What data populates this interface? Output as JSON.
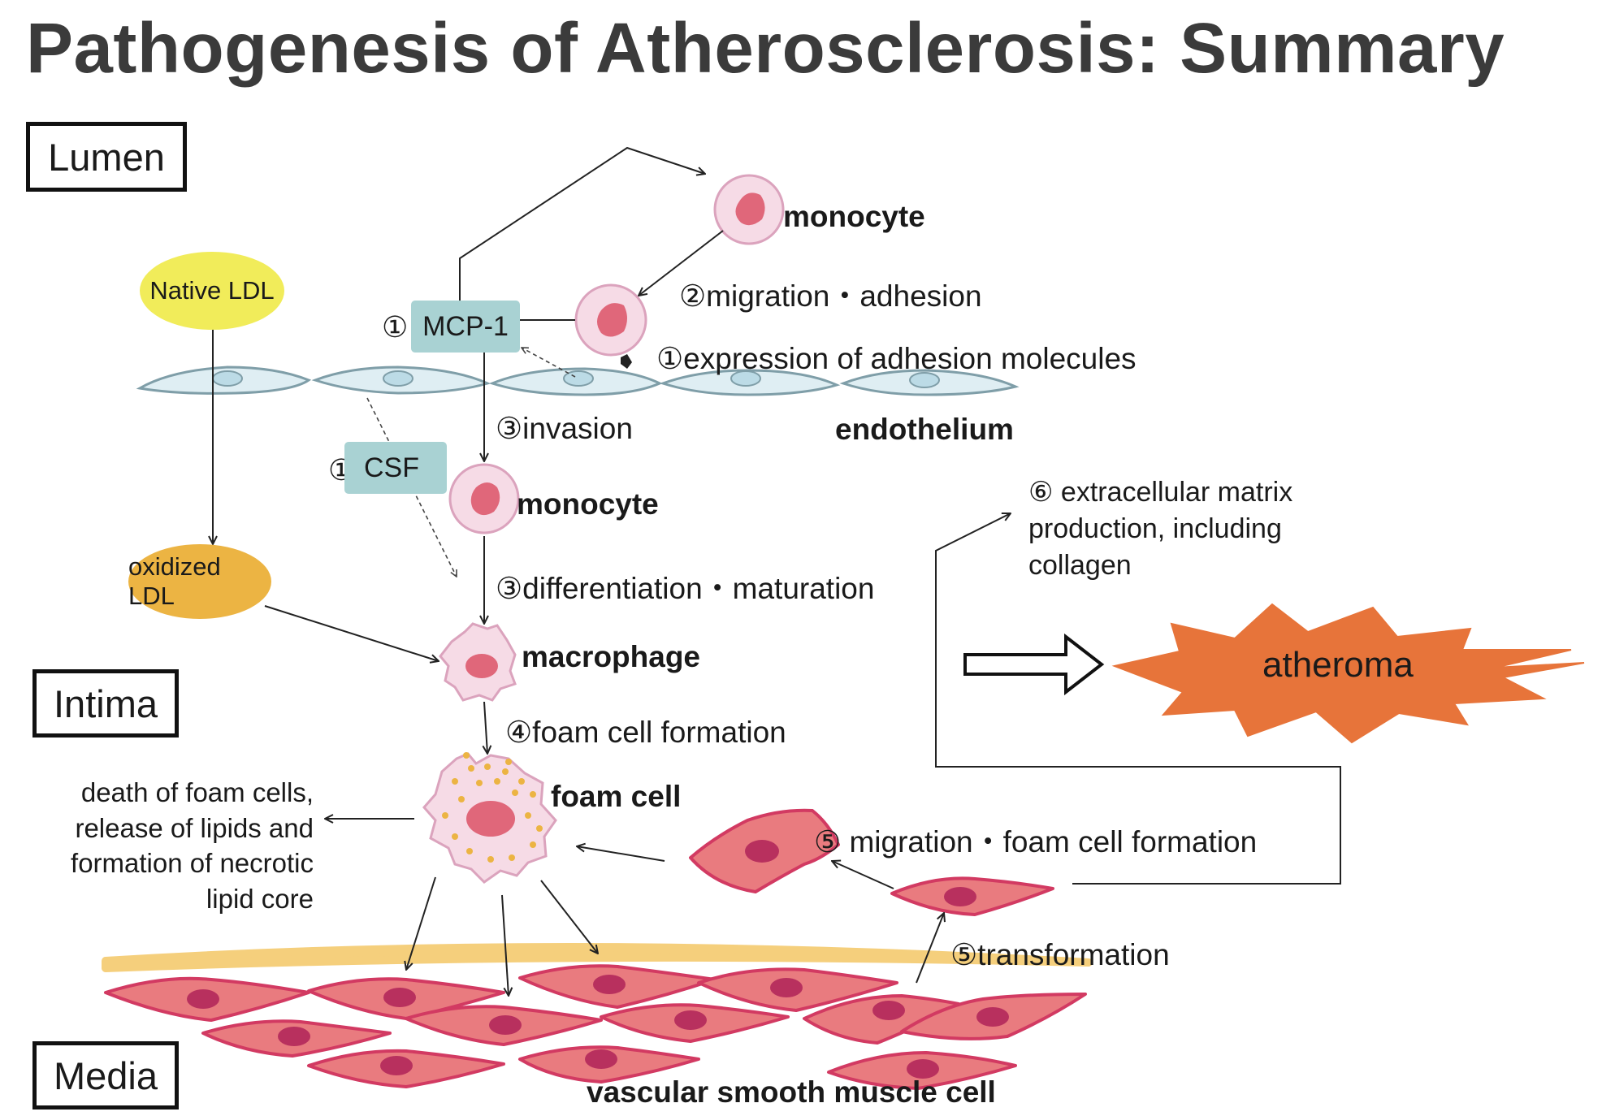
{
  "title": "Pathogenesis of Atherosclerosis: Summary",
  "layers": {
    "lumen": "Lumen",
    "intima": "Intima",
    "media": "Media"
  },
  "ldl": {
    "native": "Native LDL",
    "oxidized": "oxidized LDL"
  },
  "factors": {
    "mcp1_num": "①",
    "mcp1": "MCP-1",
    "csf_num": "①",
    "csf": "CSF"
  },
  "cells": {
    "monocyte_lumen": "monocyte",
    "monocyte_intima": "monocyte",
    "macrophage": "macrophage",
    "foam_cell": "foam cell",
    "endothelium": "endothelium",
    "vsmc": "vascular smooth muscle cell",
    "atheroma": "atheroma"
  },
  "steps": {
    "migration_adhesion": "②migration・adhesion",
    "adhesion_molecules": "①expression of adhesion molecules",
    "invasion": "③invasion",
    "differentiation": "③differentiation・maturation",
    "foam_formation": "④foam cell formation",
    "smc_migration": "⑤ migration・foam cell formation",
    "transformation": "⑤transformation",
    "ecm_line1": "⑥ extracellular matrix",
    "ecm_line2": "production, including",
    "ecm_line3": "collagen"
  },
  "death_text": {
    "line1": "death of foam cells,",
    "line2": "release of lipids and",
    "line3": "formation of necrotic",
    "line4": "lipid core"
  },
  "colors": {
    "title": "#3b3b3b",
    "native_ldl": "#f1ec5a",
    "oxidized_ldl": "#ecb443",
    "factor_box": "#a9d2d3",
    "endothelium": "#dfeef3",
    "endothelium_stroke": "#7f9ea8",
    "cell_fill": "#f6dbe6",
    "cell_stroke": "#dba3bd",
    "nucleus": "#e0677a",
    "smc_fill": "#e97b7f",
    "smc_stroke": "#d23a62",
    "smc_nucleus": "#b8305e",
    "internal_elastic_lamina": "#f5cf7c",
    "atheroma": "#e7743a"
  }
}
